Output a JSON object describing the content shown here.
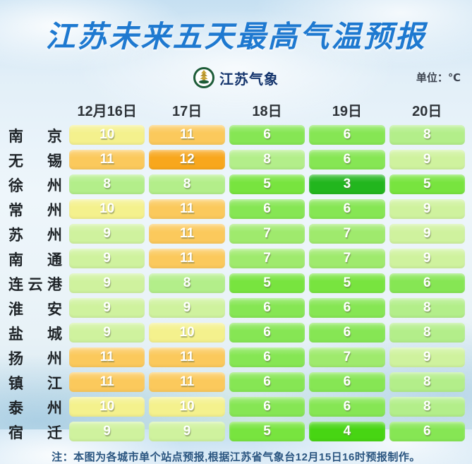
{
  "title": "江苏未来五天最高气温预报",
  "brand": {
    "logo_text": "江苏气象",
    "unit_label": "单位：℃"
  },
  "footer": {
    "note": "注：本图为各城市单个站点预报,根据江苏省气象台12月15日16时预报制作。"
  },
  "temp_colors": {
    "3": "#22b61e",
    "4": "#47d513",
    "5": "#78e43f",
    "6": "#86e654",
    "7": "#9fea6d",
    "8": "#b3ee8a",
    "9": "#cff29e",
    "10": "#f4f18d",
    "11": "#fbc95c",
    "12": "#f8a71d"
  },
  "chart_data": {
    "type": "heatmap",
    "title": "江苏未来五天最高气温预报",
    "unit": "℃",
    "columns": [
      "12月16日",
      "17日",
      "18日",
      "19日",
      "20日"
    ],
    "rows": [
      "南京",
      "无锡",
      "徐州",
      "常州",
      "苏州",
      "南通",
      "连云港",
      "淮安",
      "盐城",
      "扬州",
      "镇江",
      "泰州",
      "宿迁"
    ],
    "values": [
      [
        10,
        11,
        6,
        6,
        8
      ],
      [
        11,
        12,
        8,
        6,
        9
      ],
      [
        8,
        8,
        5,
        3,
        5
      ],
      [
        10,
        11,
        6,
        6,
        9
      ],
      [
        9,
        11,
        7,
        7,
        9
      ],
      [
        9,
        11,
        7,
        7,
        9
      ],
      [
        9,
        8,
        5,
        5,
        6
      ],
      [
        9,
        9,
        6,
        6,
        8
      ],
      [
        9,
        10,
        6,
        6,
        8
      ],
      [
        11,
        11,
        6,
        7,
        9
      ],
      [
        11,
        11,
        6,
        6,
        8
      ],
      [
        10,
        10,
        6,
        6,
        8
      ],
      [
        9,
        9,
        5,
        4,
        6
      ]
    ],
    "value_range": [
      3,
      12
    ],
    "legend": "none",
    "note": "注：本图为各城市单个站点预报,根据江苏省气象台12月15日16时预报制作。"
  }
}
